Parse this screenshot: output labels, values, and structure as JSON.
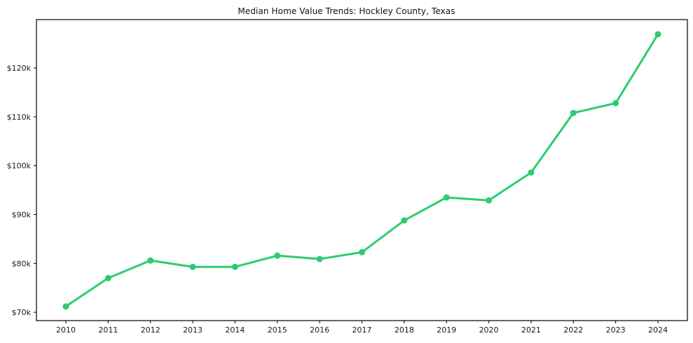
{
  "chart_data": {
    "type": "line",
    "title": "Median Home Value Trends: Hockley County, Texas",
    "series_name": "Median Home Value",
    "x": [
      "2010",
      "2011",
      "2012",
      "2013",
      "2014",
      "2015",
      "2016",
      "2017",
      "2018",
      "2019",
      "2020",
      "2021",
      "2022",
      "2023",
      "2024"
    ],
    "values": [
      71200,
      77000,
      80600,
      79300,
      79300,
      81600,
      80900,
      82300,
      88800,
      93500,
      92900,
      98600,
      110800,
      112800,
      126900
    ],
    "xlabel": "",
    "ylabel": "",
    "ylim": [
      68300,
      129900
    ],
    "yticks": [
      70000,
      80000,
      90000,
      100000,
      110000,
      120000
    ],
    "ytick_labels": [
      "$70k",
      "$80k",
      "$90k",
      "$100k",
      "$110k",
      "$120k"
    ],
    "grid": false,
    "legend": "none",
    "line_color": "#2ecc71",
    "marker_color": "#2ecc71",
    "axis_color": "#000000",
    "tick_label_color": "#1a1a1a"
  }
}
